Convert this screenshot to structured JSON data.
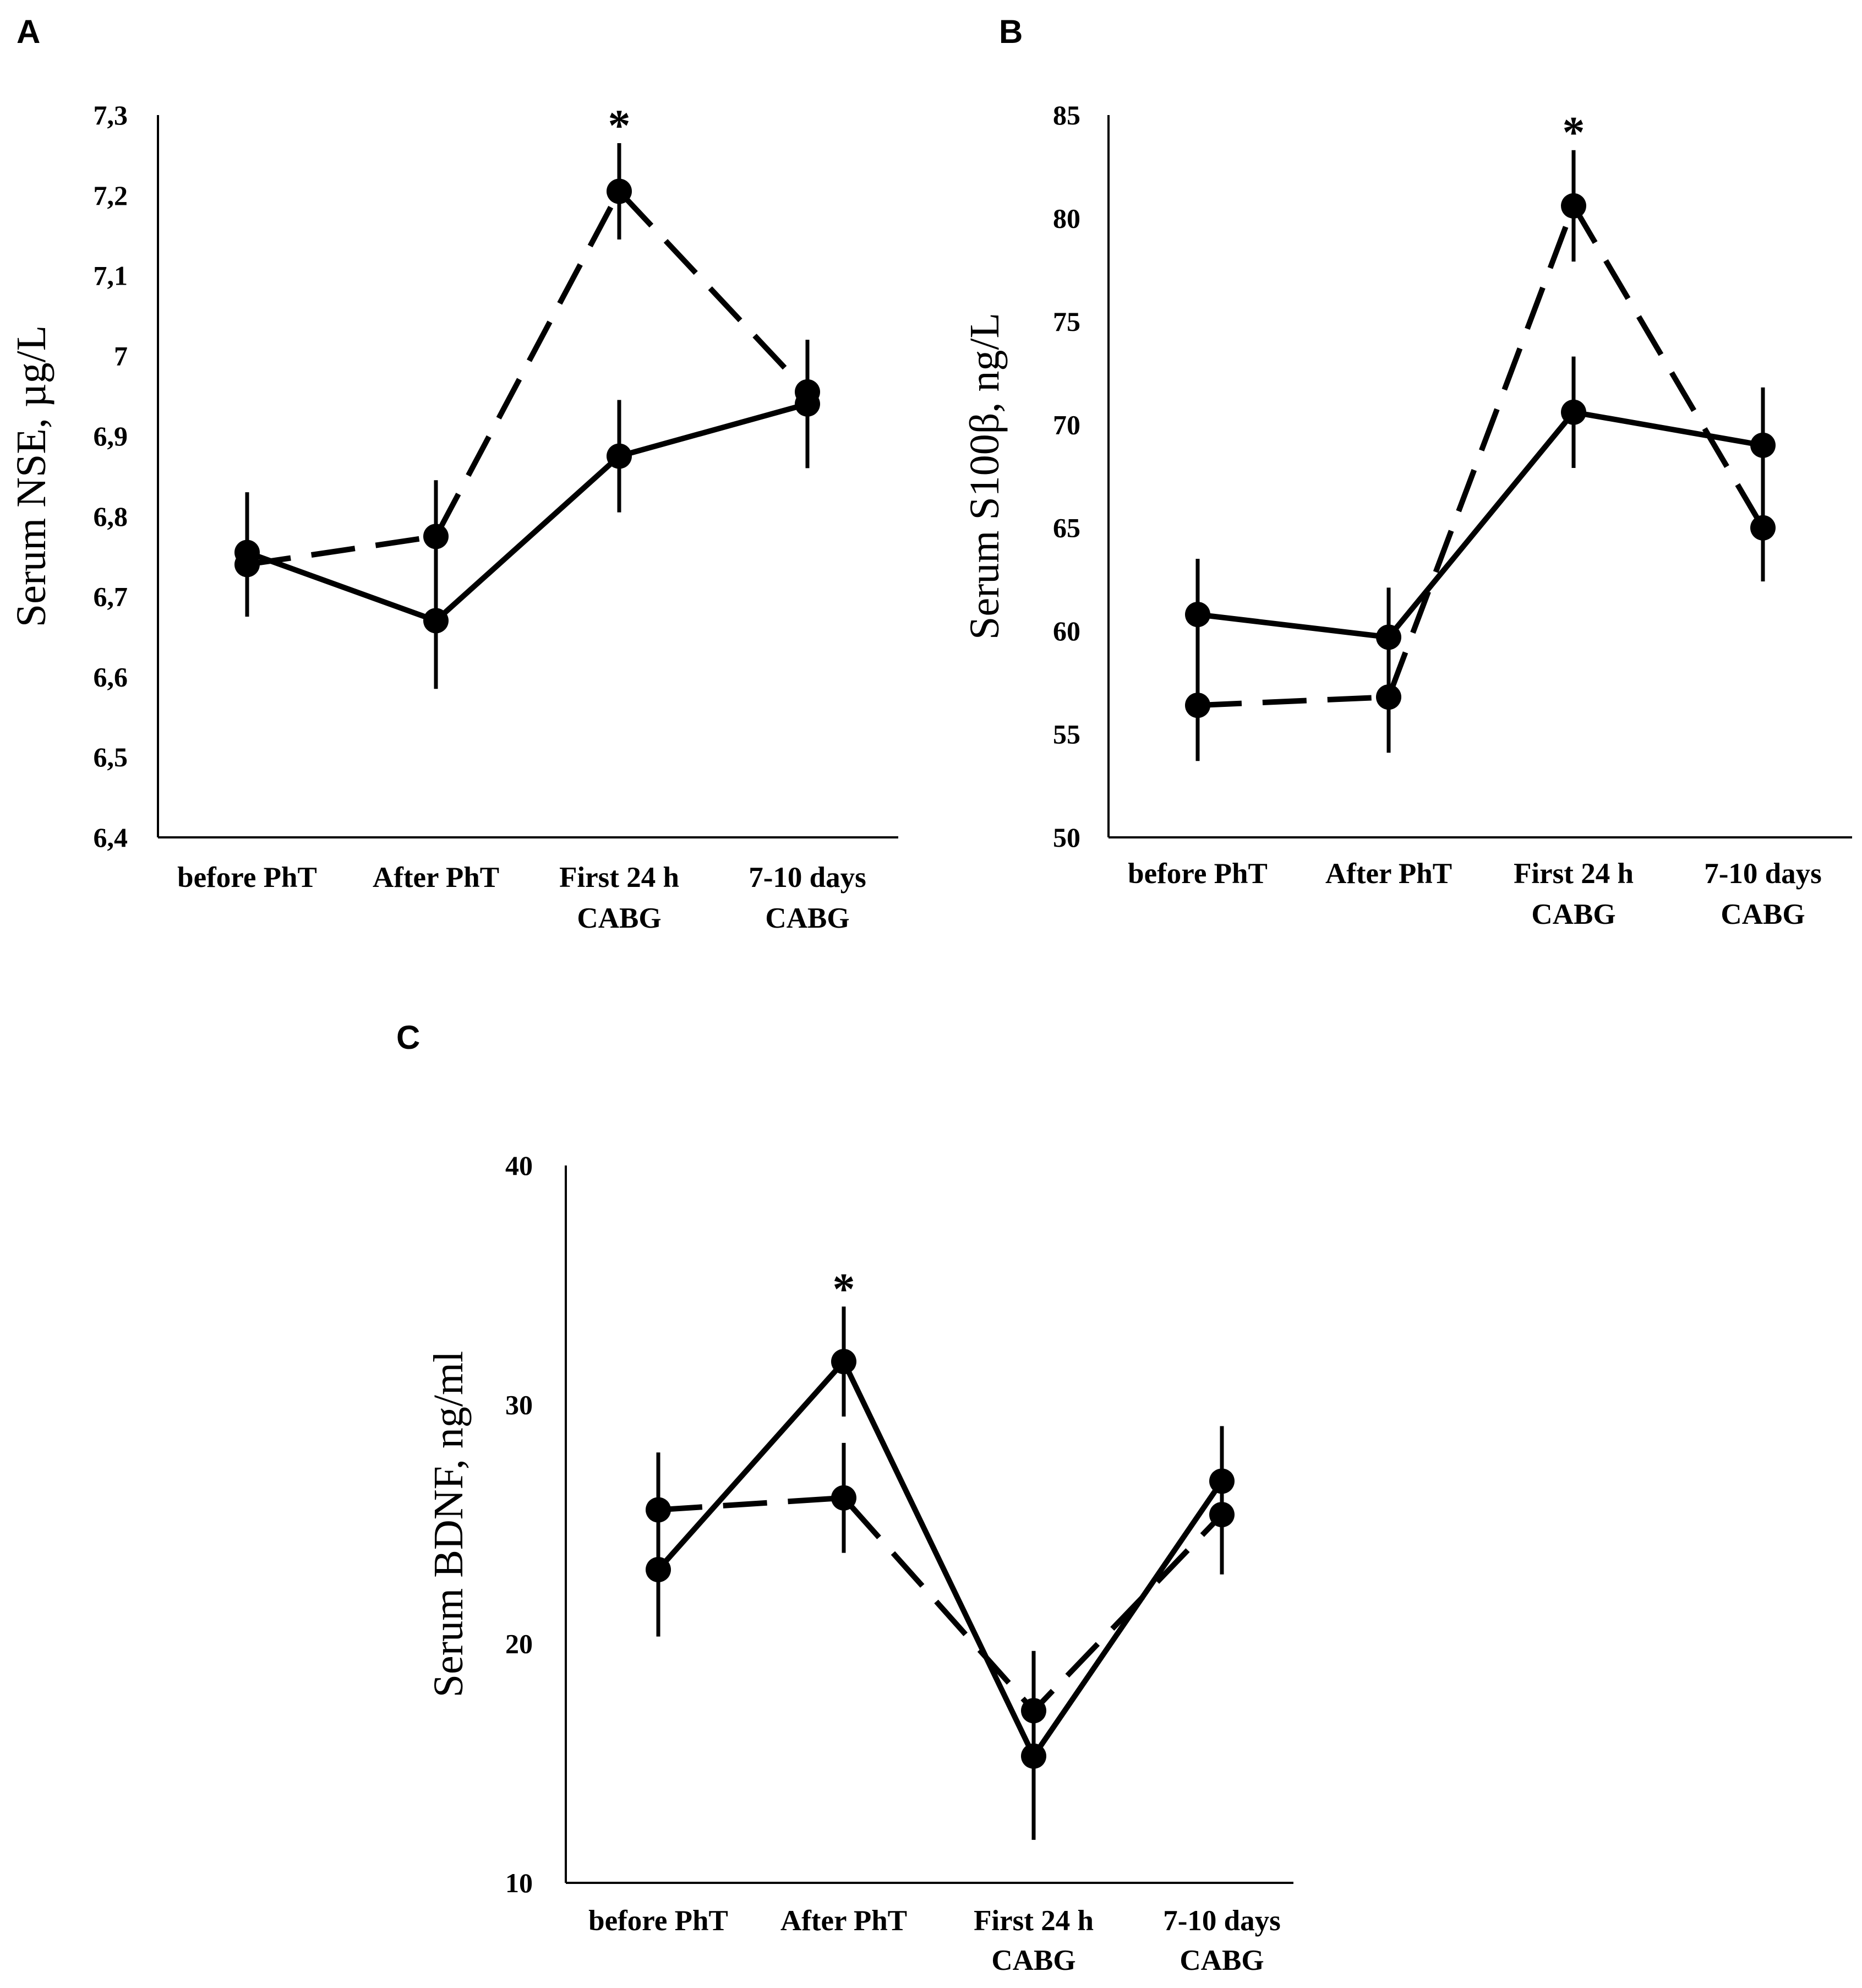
{
  "chart_data": [
    {
      "panel": "A",
      "type": "line",
      "ylabel": "Serum NSE, µg/L",
      "ylim": [
        6.4,
        7.3
      ],
      "yticks": [
        6.4,
        6.5,
        6.6,
        6.7,
        6.8,
        6.9,
        7.0,
        7.1,
        7.2,
        7.3
      ],
      "ytick_labels": [
        "6,4",
        "6,5",
        "6,6",
        "6,7",
        "6,8",
        "6,9",
        "7",
        "7,1",
        "7,2",
        "7,3"
      ],
      "categories": [
        [
          "before PhT"
        ],
        [
          "After PhT"
        ],
        [
          "First 24 h",
          "CABG"
        ],
        [
          "7-10 days",
          "CABG"
        ]
      ],
      "series": [
        {
          "name": "solid",
          "style": "solid",
          "values": [
            6.755,
            6.67,
            6.875,
            6.94
          ],
          "errors": [
            0.075,
            0.085,
            0.07,
            0.08
          ]
        },
        {
          "name": "dashed",
          "style": "dashed",
          "values": [
            6.74,
            6.775,
            7.205,
            6.955
          ],
          "errors": [
            0.065,
            0.07,
            0.06,
            0.055
          ]
        }
      ],
      "significance": [
        {
          "category_index": 2,
          "label": "*"
        }
      ]
    },
    {
      "panel": "B",
      "type": "line",
      "ylabel": "Serum S100β, ng/L",
      "ylim": [
        50,
        85
      ],
      "yticks": [
        50,
        55,
        60,
        65,
        70,
        75,
        80,
        85
      ],
      "ytick_labels": [
        "50",
        "55",
        "60",
        "65",
        "70",
        "75",
        "80",
        "85"
      ],
      "categories": [
        [
          "before PhT"
        ],
        [
          "After PhT"
        ],
        [
          "First 24 h",
          "CABG"
        ],
        [
          "7-10 days",
          "CABG"
        ]
      ],
      "series": [
        {
          "name": "solid",
          "style": "solid",
          "values": [
            60.8,
            59.7,
            70.6,
            69.0
          ],
          "errors": [
            2.7,
            2.4,
            2.7,
            2.8
          ]
        },
        {
          "name": "dashed",
          "style": "dashed",
          "values": [
            56.4,
            56.8,
            80.6,
            65.0
          ],
          "errors": [
            2.7,
            2.7,
            2.7,
            2.6
          ]
        }
      ],
      "significance": [
        {
          "category_index": 2,
          "label": "*"
        }
      ]
    },
    {
      "panel": "C",
      "type": "line",
      "ylabel": "Serum BDNF, ng/ml",
      "ylim": [
        10,
        40
      ],
      "yticks": [
        10,
        20,
        30,
        40
      ],
      "ytick_labels": [
        "10",
        "20",
        "30",
        "40"
      ],
      "categories": [
        [
          "before PhT"
        ],
        [
          "After PhT"
        ],
        [
          "First 24 h",
          "CABG"
        ],
        [
          "7-10 days",
          "CABG"
        ]
      ],
      "series": [
        {
          "name": "solid",
          "style": "solid",
          "values": [
            23.1,
            31.8,
            15.3,
            26.8
          ],
          "errors": [
            2.8,
            2.3,
            3.5,
            2.3
          ]
        },
        {
          "name": "dashed",
          "style": "dashed",
          "values": [
            25.6,
            26.1,
            17.2,
            25.4
          ],
          "errors": [
            2.4,
            2.3,
            2.5,
            2.5
          ]
        }
      ],
      "significance": [
        {
          "category_index": 1,
          "label": "*"
        }
      ]
    }
  ]
}
